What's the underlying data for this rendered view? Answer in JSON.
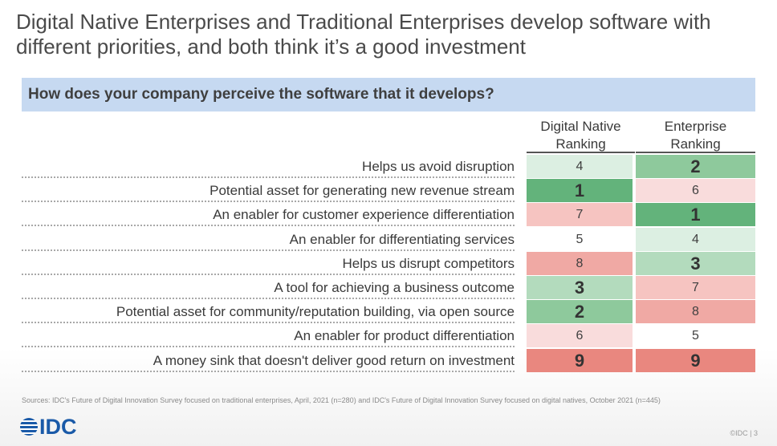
{
  "title": "Digital Native Enterprises and Traditional Enterprises develop software with different priorities, and both think it’s a good investment",
  "question": "How does your company perceive the software that it develops?",
  "columns": {
    "digital_native": "Digital Native\nRanking",
    "enterprise": "Enterprise\nRanking"
  },
  "rows": [
    {
      "label": "Helps us avoid disruption",
      "digital_native": "4",
      "enterprise": "2"
    },
    {
      "label": "Potential asset for generating new revenue stream",
      "digital_native": "1",
      "enterprise": "6"
    },
    {
      "label": "An enabler for customer experience differentiation",
      "digital_native": "7",
      "enterprise": "1"
    },
    {
      "label": "An enabler for differentiating services",
      "digital_native": "5",
      "enterprise": "4"
    },
    {
      "label": "Helps us disrupt competitors",
      "digital_native": "8",
      "enterprise": "3"
    },
    {
      "label": "A tool for achieving a business outcome",
      "digital_native": "3",
      "enterprise": "7"
    },
    {
      "label": "Potential asset for community/reputation building, via open source",
      "digital_native": "2",
      "enterprise": "8"
    },
    {
      "label": "An enabler for product differentiation",
      "digital_native": "6",
      "enterprise": "5"
    },
    {
      "label": "A money sink that doesn't deliver good return on investment",
      "digital_native": "9",
      "enterprise": "9"
    }
  ],
  "rank_colors": {
    "1": "#63b37b",
    "2": "#8ec99c",
    "3": "#b3dbbd",
    "4": "#dcefe2",
    "5": "#ffffff",
    "6": "#f9dcdc",
    "7": "#f6c4c1",
    "8": "#f0a9a4",
    "9": "#e9877f"
  },
  "sources": "Sources: IDC's Future of Digital Innovation Survey focused on traditional enterprises, April, 2021 (n=280) and IDC's Future of Digital Innovation Survey focused on digital natives, October 2021 (n=445)",
  "logo_text": "IDC",
  "footer": "©IDC | 3"
}
